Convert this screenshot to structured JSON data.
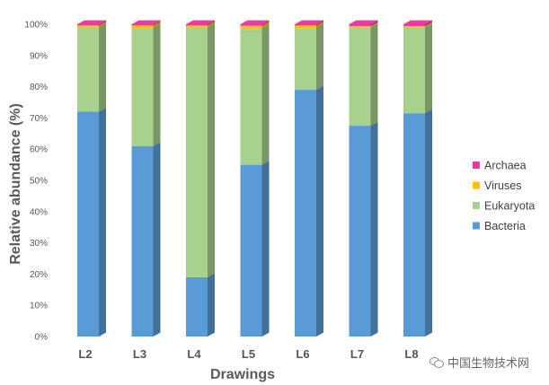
{
  "chart_data": {
    "type": "bar",
    "stacked": true,
    "xlabel": "Drawings",
    "ylabel": "Relative abundance (%)",
    "ylim": [
      0,
      100
    ],
    "yticks": [
      "0%",
      "10%",
      "20%",
      "30%",
      "40%",
      "50%",
      "60%",
      "70%",
      "80%",
      "90%",
      "100%"
    ],
    "categories": [
      "L2",
      "L3",
      "L4",
      "L5",
      "L6",
      "L7",
      "L8"
    ],
    "series": [
      {
        "name": "Bacteria",
        "color": "#5b9bd5",
        "values": [
          72,
          61,
          19,
          55,
          79,
          67.5,
          71.5
        ]
      },
      {
        "name": "Eukaryota",
        "color": "#a9d18e",
        "values": [
          27,
          37.8,
          80,
          43.5,
          19.8,
          31.5,
          27.5
        ]
      },
      {
        "name": "Viruses",
        "color": "#ffc000",
        "values": [
          0.6,
          0.8,
          0.6,
          1,
          0.8,
          0.4,
          0.4
        ]
      },
      {
        "name": "Archaea",
        "color": "#e83ca0",
        "values": [
          0.4,
          0.4,
          0.4,
          0.5,
          0.4,
          0.6,
          0.6
        ]
      }
    ],
    "legend_position": "right",
    "grid": false
  },
  "watermark": {
    "icon": "wechat-icon",
    "text": "中国生物技术网"
  }
}
